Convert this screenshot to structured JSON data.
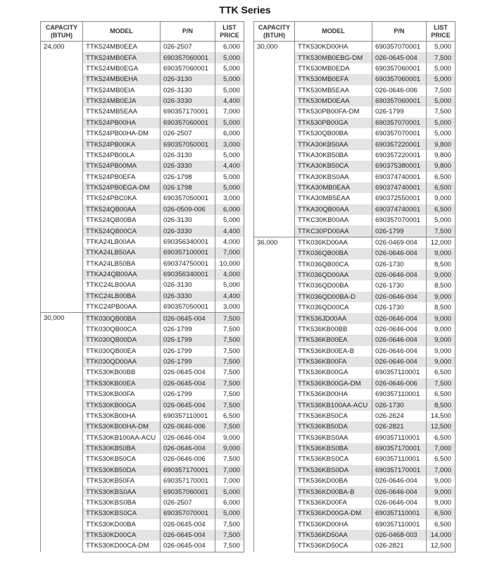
{
  "title": "TTK Series",
  "headers": {
    "capacity": "CAPACITY (BTUH)",
    "model": "MODEL",
    "pn": "P/N",
    "price": "LIST PRICE"
  },
  "tables": [
    {
      "groups": [
        {
          "capacity": "24,000",
          "rows": [
            [
              "TTK524MB0EEA",
              "026-2507",
              "6,000"
            ],
            [
              "TTK524MB0EFA",
              "690357060001",
              "5,000"
            ],
            [
              "TTK524MB0EGA",
              "690357060001",
              "5,000"
            ],
            [
              "TTK524MB0EHA",
              "026-3130",
              "5,000"
            ],
            [
              "TTK524MB0EIA",
              "026-3130",
              "5,000"
            ],
            [
              "TTK524MB0EJA",
              "026-3330",
              "4,400"
            ],
            [
              "TTK524MB5EAA",
              "690357170001",
              "7,000"
            ],
            [
              "TTK524PB00HA",
              "690357060001",
              "5,000"
            ],
            [
              "TTK524PB00HA-DM",
              "026-2507",
              "6,000"
            ],
            [
              "TTK524PB00KA",
              "690357050001",
              "3,000"
            ],
            [
              "TTK524PB00LA",
              "026-3130",
              "5,000"
            ],
            [
              "TTK524PB00MA",
              "026-3330",
              "4,400"
            ],
            [
              "TTK524PB0EFA",
              "026-1798",
              "5,000"
            ],
            [
              "TTK524PB0EGA-DM",
              "026-1798",
              "5,000"
            ],
            [
              "TTK524PBC0KA",
              "690357050001",
              "3,000"
            ],
            [
              "TTK524QB00AA",
              "026-0509-006",
              "6,000"
            ],
            [
              "TTK524QB00BA",
              "026-3130",
              "5,000"
            ],
            [
              "TTK524QB00CA",
              "026-3330",
              "4,400"
            ],
            [
              "TTKA24LB00AA",
              "690356340001",
              "4,000"
            ],
            [
              "TTKA24LB50AA",
              "690357100001",
              "7,000"
            ],
            [
              "TTKA24LB50BA",
              "690374750001",
              "10,000"
            ],
            [
              "TTKA24QB00AA",
              "690356340001",
              "4,000"
            ],
            [
              "TTKC24LB00AA",
              "026-3130",
              "5,000"
            ],
            [
              "TTKC24LB00BA",
              "026-3330",
              "4,400"
            ],
            [
              "TTKC24PB00AA",
              "690357050001",
              "3,000"
            ]
          ]
        },
        {
          "capacity": "30,000",
          "rows": [
            [
              "TTK030QB00BA",
              "026-0645-004",
              "7,500"
            ],
            [
              "TTK030QB00CA",
              "026-1799",
              "7,500"
            ],
            [
              "TTK030QB00DA",
              "026-1799",
              "7,500"
            ],
            [
              "TTK030QB00EA",
              "026-1799",
              "7,500"
            ],
            [
              "TTK030QD00AA",
              "026-1799",
              "7,500"
            ],
            [
              "TTK530KB00BB",
              "026-0645-004",
              "7,500"
            ],
            [
              "TTK530KB00EA",
              "026-0645-004",
              "7,500"
            ],
            [
              "TTK530KB00FA",
              "026-1799",
              "7,500"
            ],
            [
              "TTK530KB00GA",
              "026-0645-004",
              "7,500"
            ],
            [
              "TTK530KB00HA",
              "690357110001",
              "6,500"
            ],
            [
              "TTK530KB00HA-DM",
              "026-0646-006",
              "7,500"
            ],
            [
              "TTK530KB100AA-ACU",
              "026-0646-004",
              "9,000"
            ],
            [
              "TTK530KB50BA",
              "026-0646-004",
              "9,000"
            ],
            [
              "TTK530KB50CA",
              "026-0646-006",
              "7,500"
            ],
            [
              "TTK530KB50DA",
              "690357170001",
              "7,000"
            ],
            [
              "TTK530KB50FA",
              "690357170001",
              "7,000"
            ],
            [
              "TTK530KBS0AA",
              "690357060001",
              "5,000"
            ],
            [
              "TTK530KBS0BA",
              "026-2507",
              "6,000"
            ],
            [
              "TTK530KBS0CA",
              "690357070001",
              "5,000"
            ],
            [
              "TTK530KD00BA",
              "026-0645-004",
              "7,500"
            ],
            [
              "TTK530KD00CA",
              "026-0645-004",
              "7,500"
            ],
            [
              "TTK530KD00CA-DM",
              "026-0645-004",
              "7,500"
            ]
          ]
        }
      ]
    },
    {
      "groups": [
        {
          "capacity": "30,000",
          "rows": [
            [
              "TTK530KD00HA",
              "690357070001",
              "5,000"
            ],
            [
              "TTK530MB0EBG-DM",
              "026-0645-004",
              "7,500"
            ],
            [
              "TTK530MB0EDA",
              "690357060001",
              "5,000"
            ],
            [
              "TTK530MB0EFA",
              "690357060001",
              "5,000"
            ],
            [
              "TTK530MB5EAA",
              "026-0646-006",
              "7,500"
            ],
            [
              "TTK530MD0EAA",
              "690357060001",
              "5,000"
            ],
            [
              "TTK530PB00FA-DM",
              "026-1799",
              "7,500"
            ],
            [
              "TTK530PB00GA",
              "690357070001",
              "5,000"
            ],
            [
              "TTK530QB00BA",
              "690357070001",
              "5,000"
            ],
            [
              "TTKA30KB50AA",
              "690357220001",
              "9,800"
            ],
            [
              "TTKA30KB50BA",
              "690357220001",
              "9,800"
            ],
            [
              "TTKA30KB50CA",
              "690375380001",
              "9,800"
            ],
            [
              "TTKA30KBS0AA",
              "690374740001",
              "6,500"
            ],
            [
              "TTKA30MB0EAA",
              "690374740001",
              "6,500"
            ],
            [
              "TTKA30MB5EAA",
              "690372550001",
              "9,000"
            ],
            [
              "TTKA30QB00AA",
              "690374740001",
              "6,500"
            ],
            [
              "TTKC30KB00AA",
              "690357070001",
              "5,000"
            ],
            [
              "TTKC30PD00AA",
              "026-1799",
              "7,500"
            ]
          ]
        },
        {
          "capacity": "36,000",
          "rows": [
            [
              "TTK036KD00AA",
              "026-0469-004",
              "12,000"
            ],
            [
              "TTK036QB00BA",
              "026-0646-004",
              "9,000"
            ],
            [
              "TTK036QB00CA",
              "026-1730",
              "8,500"
            ],
            [
              "TTK036QD00AA",
              "026-0646-004",
              "9,000"
            ],
            [
              "TTK036QD00BA",
              "026-1730",
              "8,500"
            ],
            [
              "TTK036QD00BA-D",
              "026-0646-004",
              "9,000"
            ],
            [
              "TTK036QD00CA",
              "026-1730",
              "8,500"
            ],
            [
              "TTK536JD00AA",
              "026-0646-004",
              "9,000"
            ],
            [
              "TTK536KB00BB",
              "026-0646-004",
              "9,000"
            ],
            [
              "TTK536KB00EA",
              "026-0646-004",
              "9,000"
            ],
            [
              "TTK536KB00EA-B",
              "026-0646-004",
              "9,000"
            ],
            [
              "TTK536KB00FA",
              "026-0646-004",
              "9,000"
            ],
            [
              "TTK536KB00GA",
              "690357110001",
              "6,500"
            ],
            [
              "TTK536KB00GA-DM",
              "026-0646-006",
              "7,500"
            ],
            [
              "TTK536KB00HA",
              "690357110001",
              "6,500"
            ],
            [
              "TTK536KB100AA-ACU",
              "026-1730",
              "8,500"
            ],
            [
              "TTK536KB50CA",
              "026-2624",
              "14,500"
            ],
            [
              "TTK536KB50DA",
              "026-2821",
              "12,500"
            ],
            [
              "TTK536KBS0AA",
              "690357110001",
              "6,500"
            ],
            [
              "TTK536KBS0BA",
              "690357170001",
              "7,000"
            ],
            [
              "TTK536KBS0CA",
              "690357110001",
              "6,500"
            ],
            [
              "TTK536KBS0DA",
              "690357170001",
              "7,000"
            ],
            [
              "TTK536KD00BA",
              "026-0646-004",
              "9,000"
            ],
            [
              "TTK536KD00BA-B",
              "026-0646-004",
              "9,000"
            ],
            [
              "TTK536KD00FA",
              "026-0646-004",
              "9,000"
            ],
            [
              "TTK536KD00GA-DM",
              "690357110001",
              "6,500"
            ],
            [
              "TTK536KD00HA",
              "690357110001",
              "6,500"
            ],
            [
              "TTK536KD50AA",
              "026-0468-003",
              "14,000"
            ],
            [
              "TTK536KD50CA",
              "026-2821",
              "12,500"
            ]
          ]
        }
      ]
    }
  ]
}
